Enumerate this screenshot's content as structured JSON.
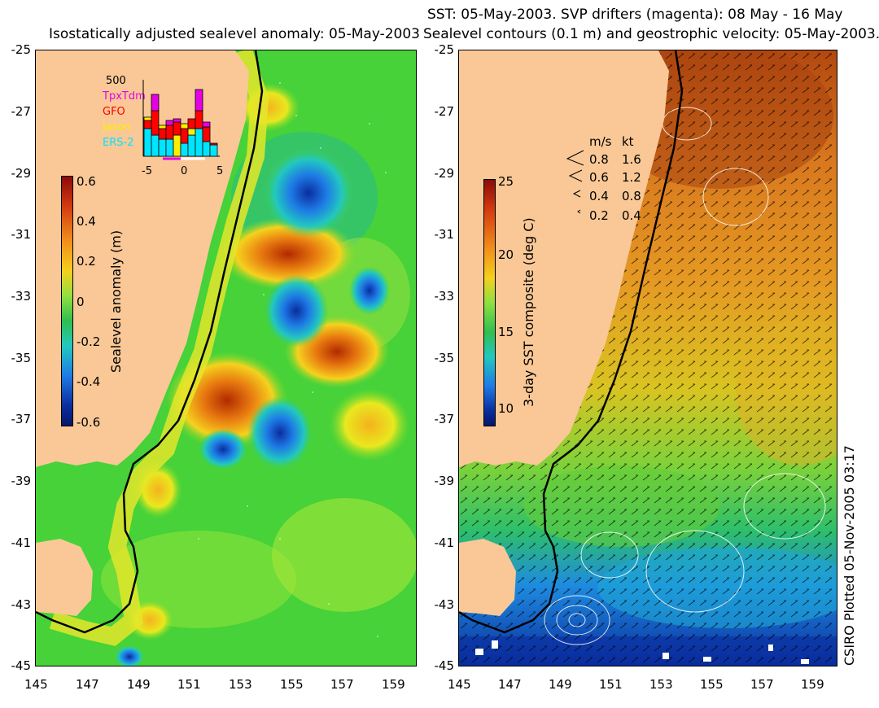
{
  "left_panel": {
    "title": "Isostatically adjusted sealevel anomaly: 05-May-2003",
    "colorbar": {
      "label": "Sealevel anomaly (m)",
      "ticks": [
        "0.6",
        "0.4",
        "0.2",
        "0",
        "-0.2",
        "-0.4",
        "-0.6"
      ]
    },
    "histogram": {
      "ymax_label": "500",
      "legend": [
        {
          "name": "TpxTdm",
          "color": "#e600e6"
        },
        {
          "name": "GFO",
          "color": "#ff0000"
        },
        {
          "name": "Jason",
          "color": "#ffee00"
        },
        {
          "name": "ERS-2",
          "color": "#00e5ff"
        }
      ],
      "xticks": [
        "-5",
        "0",
        "5"
      ]
    }
  },
  "right_panel": {
    "title_line1": "SST: 05-May-2003. SVP drifters (magenta): 08 May - 16 May",
    "title_line2": "Sealevel contours (0.1 m) and geostrophic velocity: 05-May-2003.",
    "colorbar": {
      "label": "3-day SST composite (deg C)",
      "ticks": [
        "25",
        "20",
        "15",
        "10"
      ]
    },
    "speed_legend": {
      "header_ms": "m/s",
      "header_kt": "kt",
      "rows": [
        {
          "ms": "0.8",
          "kt": "1.6"
        },
        {
          "ms": "0.6",
          "kt": "1.2"
        },
        {
          "ms": "0.4",
          "kt": "0.8"
        },
        {
          "ms": "0.2",
          "kt": "0.4"
        }
      ]
    }
  },
  "axes": {
    "lat_ticks": [
      "-25",
      "-27",
      "-29",
      "-31",
      "-33",
      "-35",
      "-37",
      "-39",
      "-41",
      "-43",
      "-45"
    ],
    "lon_ticks": [
      "145",
      "147",
      "149",
      "151",
      "153",
      "155",
      "157",
      "159"
    ]
  },
  "credit": "CSIRO Plotted 05-Nov-2005 03:17",
  "colors": {
    "land": "#f9c896",
    "ocean_left": "#46d238",
    "ocean_right_warm": "#d9781e",
    "ocean_right_cool": "#1e8be0"
  }
}
